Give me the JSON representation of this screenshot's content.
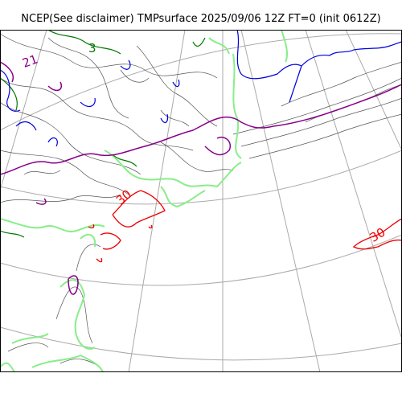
{
  "title": "NCEP(See disclaimer) TMPsurface 2025/09/06 12Z FT=0 (init 0612Z)",
  "contour_labels": {
    "red_left": "30",
    "red_right": "30",
    "green_top": "3",
    "purple_left": "21"
  },
  "colors": {
    "grid": "#aaaaaa",
    "coast": "#555555",
    "blue": "#0000dd",
    "green": "#007700",
    "lightgreen": "#88ee88",
    "purple": "#880088",
    "red": "#ee0000",
    "frame": "#000000"
  }
}
